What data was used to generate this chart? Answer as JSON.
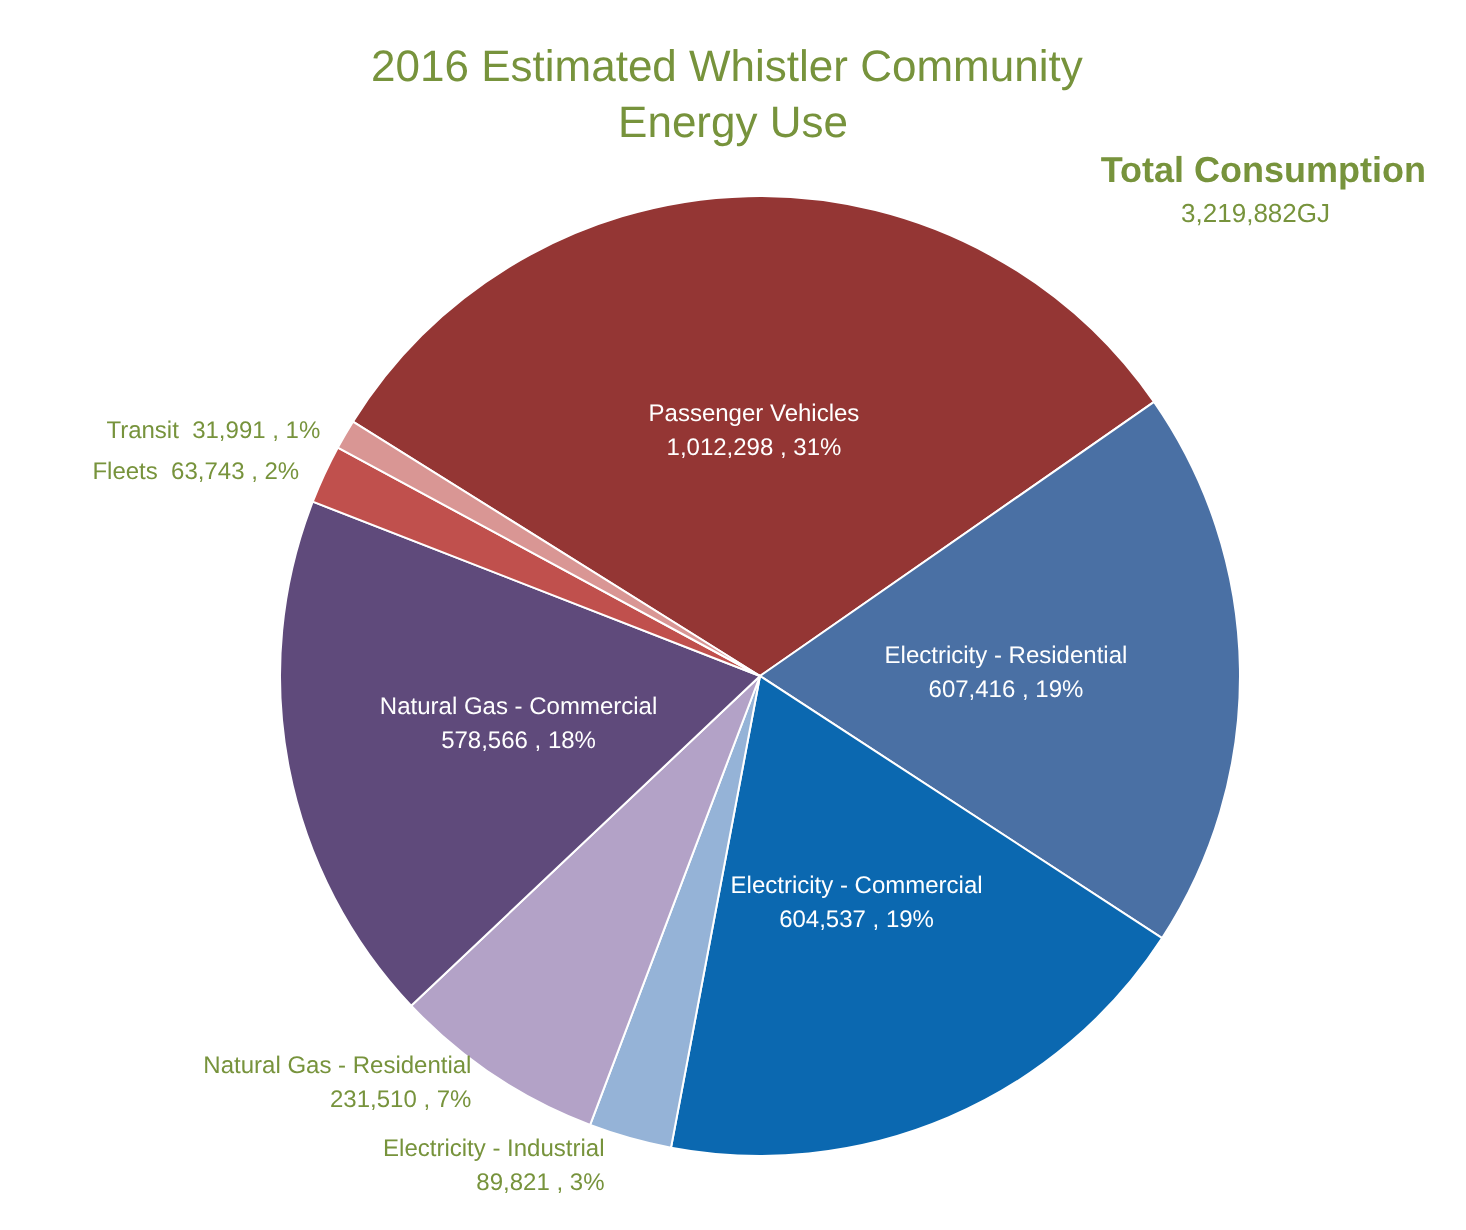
{
  "chart_data": {
    "type": "pie",
    "title": "2016 Estimated Whistler Community Energy Use",
    "categories": [
      "Passenger Vehicles",
      "Electricity - Residential",
      "Electricity - Commercial",
      "Electricity - Industrial",
      "Natural Gas - Residential",
      "Natural Gas - Commercial",
      "Fleets",
      "Transit"
    ],
    "values": [
      1012298,
      607416,
      604537,
      89821,
      231510,
      578566,
      63743,
      31991
    ],
    "colors": [
      "#943634",
      "#4a70a4",
      "#0b68b0",
      "#95b3d7",
      "#b3a2c7",
      "#5f4a7b",
      "#c0504d",
      "#d99694"
    ],
    "value_labels": [
      "1,012,298 , 31%",
      "607,416 , 19%",
      "604,537 , 19%",
      "89,821 , 3%",
      "231,510 , 7%",
      "578,566 , 18%",
      "63,743 , 2%",
      "31,991 , 1%"
    ],
    "annotations": [
      "Total Consumption",
      "3,219,882GJ"
    ],
    "legend": false
  }
}
